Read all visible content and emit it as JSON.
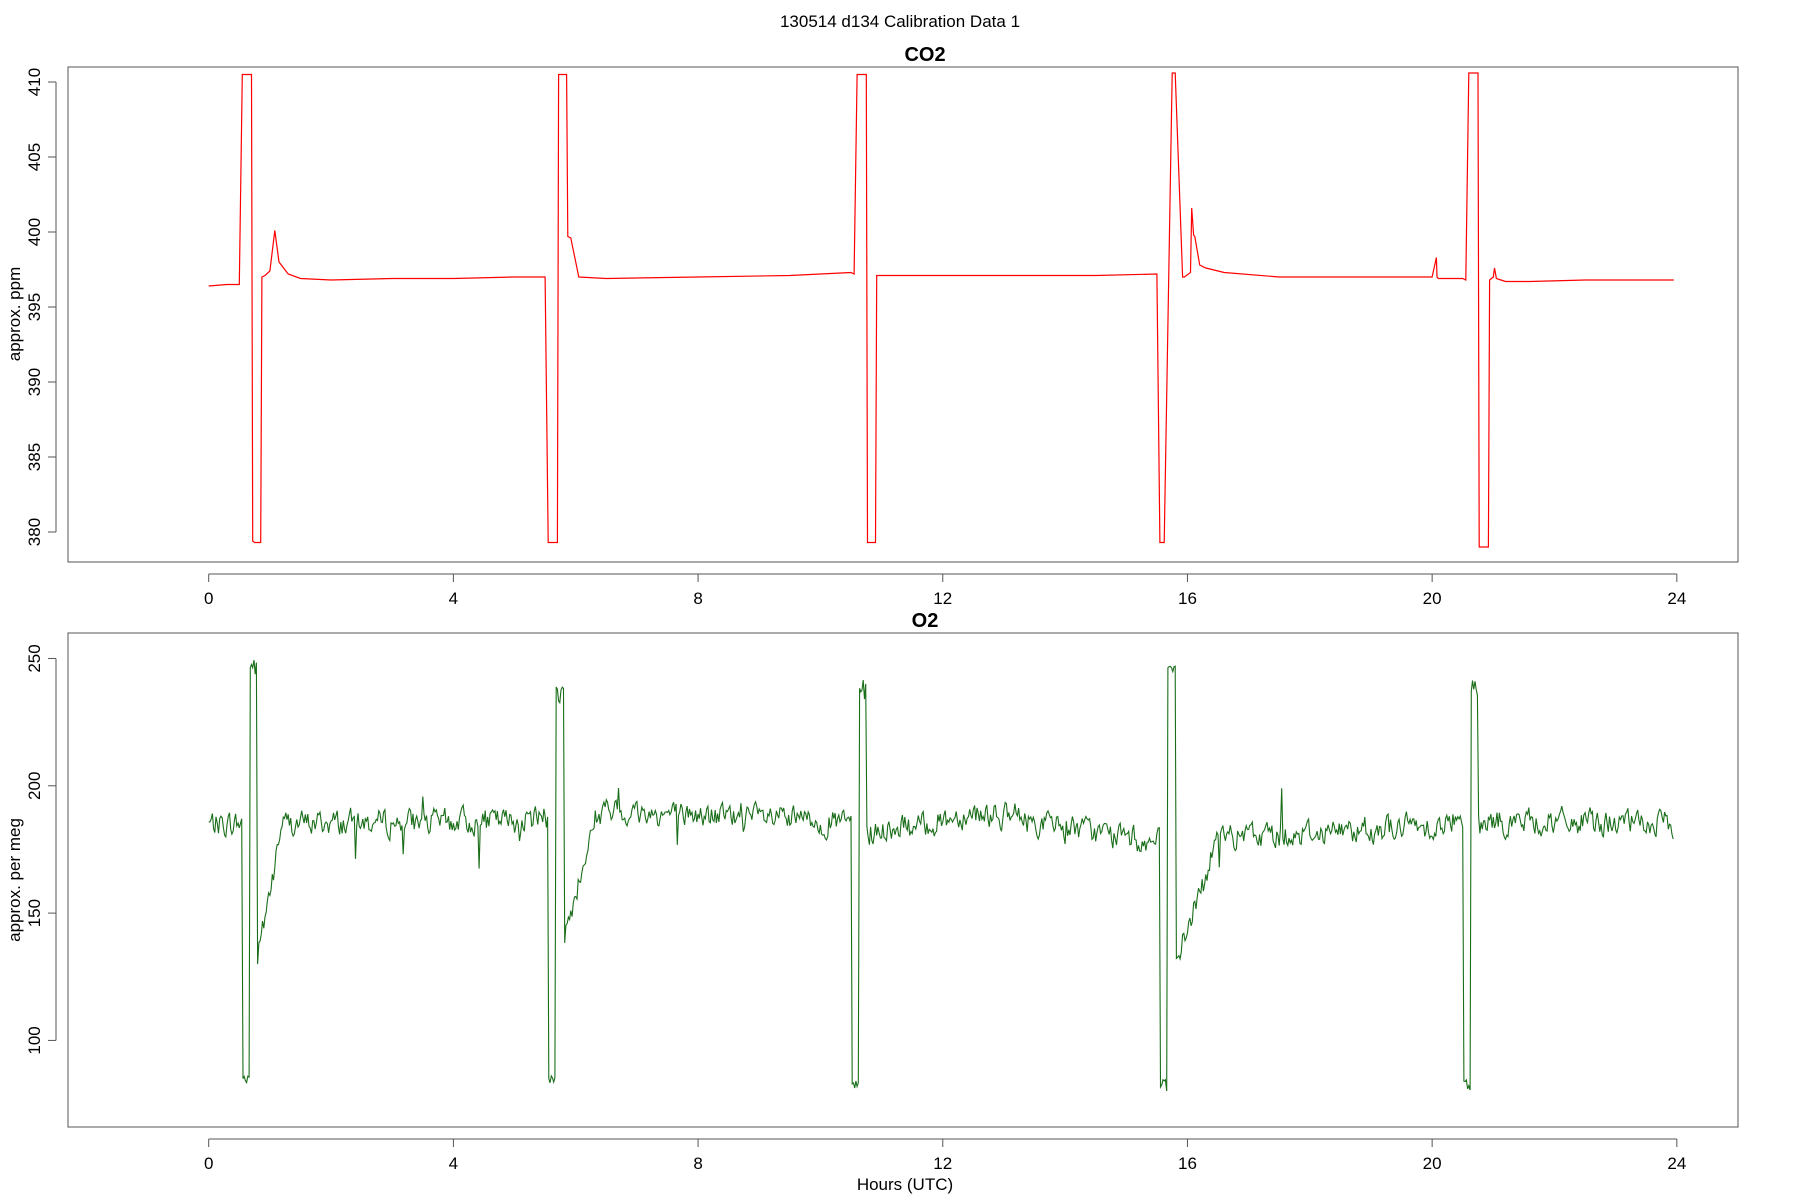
{
  "figure": {
    "suptitle": "130514   d134   Calibration Data 1",
    "xlabel": "Hours (UTC)"
  },
  "chart_data": [
    {
      "type": "line",
      "title": "CO2",
      "xlabel": "",
      "ylabel": "approx. ppm",
      "xlim": [
        -2.3,
        25
      ],
      "ylim": [
        378,
        411
      ],
      "xticks": [
        0,
        4,
        8,
        12,
        16,
        20,
        24
      ],
      "yticks": [
        380,
        385,
        390,
        395,
        400,
        405,
        410
      ],
      "grid": false,
      "series": [
        {
          "color": "#ff0000",
          "x": [
            0.0,
            0.3,
            0.5,
            0.55,
            0.57,
            0.7,
            0.72,
            0.75,
            0.85,
            0.87,
            0.92,
            1.0,
            1.08,
            1.15,
            1.3,
            1.5,
            2.0,
            3.0,
            4.0,
            5.0,
            5.5,
            5.55,
            5.57,
            5.7,
            5.72,
            5.75,
            5.85,
            5.87,
            5.92,
            6.05,
            6.5,
            8.0,
            9.5,
            10.5,
            10.55,
            10.6,
            10.62,
            10.75,
            10.77,
            10.8,
            10.9,
            10.92,
            11.0,
            12.5,
            14.5,
            15.5,
            15.55,
            15.6,
            15.62,
            15.75,
            15.77,
            15.8,
            15.92,
            15.95,
            16.05,
            16.07,
            16.1,
            16.12,
            16.2,
            16.3,
            16.6,
            17.5,
            19.0,
            20.0,
            20.07,
            20.08,
            20.1,
            20.5,
            20.55,
            20.6,
            20.62,
            20.75,
            20.77,
            20.8,
            20.92,
            20.94,
            21.0,
            21.02,
            21.05,
            21.2,
            21.6,
            22.5,
            23.5,
            23.95
          ],
          "y": [
            396.4,
            396.5,
            396.5,
            410.5,
            410.5,
            410.5,
            379.4,
            379.3,
            379.3,
            397.0,
            397.1,
            397.4,
            400.1,
            398.0,
            397.2,
            396.9,
            396.8,
            396.9,
            396.9,
            397.0,
            397.0,
            379.3,
            379.3,
            379.3,
            410.5,
            410.5,
            410.5,
            399.7,
            399.6,
            397.0,
            396.9,
            397.0,
            397.1,
            397.3,
            397.2,
            410.5,
            410.5,
            410.5,
            379.3,
            379.3,
            379.3,
            397.1,
            397.1,
            397.1,
            397.1,
            397.2,
            379.3,
            379.3,
            379.3,
            410.6,
            410.6,
            410.6,
            397.0,
            397.0,
            397.3,
            401.6,
            399.8,
            399.7,
            397.8,
            397.6,
            397.3,
            397.0,
            397.0,
            397.0,
            398.3,
            397.0,
            396.9,
            396.9,
            396.8,
            410.6,
            410.6,
            410.6,
            379.0,
            379.0,
            379.0,
            396.8,
            397.0,
            397.6,
            396.9,
            396.7,
            396.7,
            396.8,
            396.8,
            396.8
          ]
        }
      ]
    },
    {
      "type": "line",
      "title": "O2",
      "xlabel": "Hours (UTC)",
      "ylabel": "approx. per meg",
      "xlim": [
        -2.3,
        25
      ],
      "ylim": [
        66,
        260
      ],
      "xticks": [
        0,
        4,
        8,
        12,
        16,
        20,
        24
      ],
      "yticks": [
        100,
        150,
        200,
        250
      ],
      "grid": false,
      "series": [
        {
          "color": "#1a6e1a",
          "baseline": [
            [
              0,
              185
            ],
            [
              5,
              186
            ],
            [
              6.5,
              190
            ],
            [
              10,
              186
            ],
            [
              11.5,
              183
            ],
            [
              12.5,
              190
            ],
            [
              15.6,
              177
            ],
            [
              16.8,
              180
            ],
            [
              21,
              186
            ],
            [
              24,
              185
            ]
          ],
          "cal_events": [
            {
              "start": 0.55,
              "low": 83,
              "high": 250,
              "after": 133,
              "recovery_end": 1.2
            },
            {
              "start": 5.55,
              "low": 83,
              "high": 240,
              "after": 140,
              "recovery_end": 6.35
            },
            {
              "start": 10.5,
              "low": 80,
              "high": 242,
              "after": 180,
              "recovery_end": 11.3
            },
            {
              "start": 15.55,
              "low": 80,
              "high": 252,
              "after": 130,
              "recovery_end": 16.5
            },
            {
              "start": 20.5,
              "low": 80,
              "high": 243,
              "after": 185,
              "recovery_end": 20.95
            }
          ]
        }
      ]
    }
  ]
}
